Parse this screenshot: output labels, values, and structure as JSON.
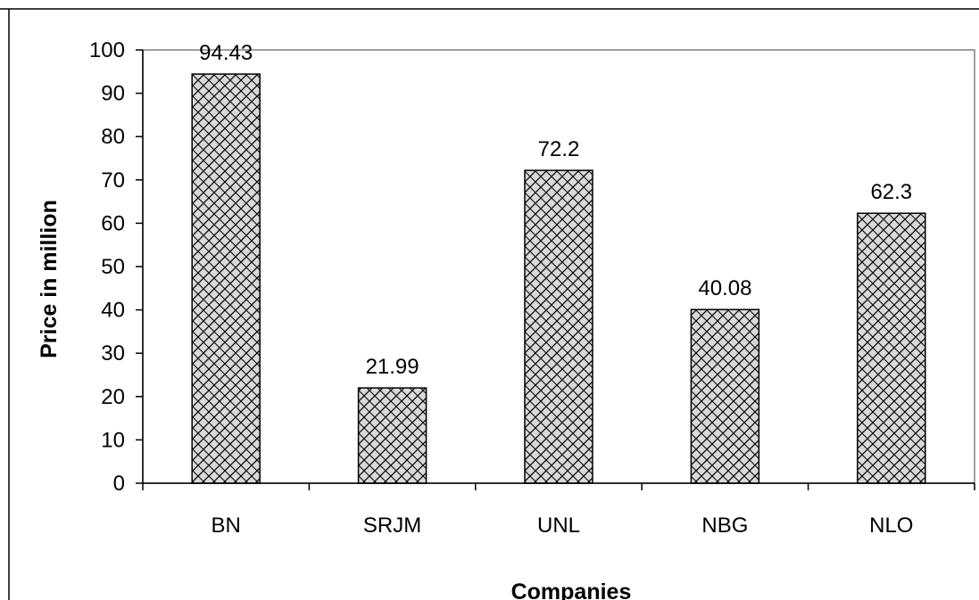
{
  "chart_data": {
    "type": "bar",
    "title": "",
    "xlabel": "Companies",
    "ylabel": "Price in million",
    "categories": [
      "BN",
      "SRJM",
      "UNL",
      "NBG",
      "NLO"
    ],
    "values": [
      94.43,
      21.99,
      72.2,
      40.08,
      62.3
    ],
    "value_labels": [
      "94.43",
      "21.99",
      "72.2",
      "40.08",
      "62.3"
    ],
    "y_ticks": [
      "0",
      "10",
      "20",
      "30",
      "40",
      "50",
      "60",
      "70",
      "80",
      "90",
      "100"
    ],
    "ylim": [
      0,
      100
    ],
    "grid": false,
    "legend": "none",
    "bar_fill": "#d9d9d9",
    "bar_pattern": "crosshatch",
    "bar_stroke": "#000000"
  }
}
